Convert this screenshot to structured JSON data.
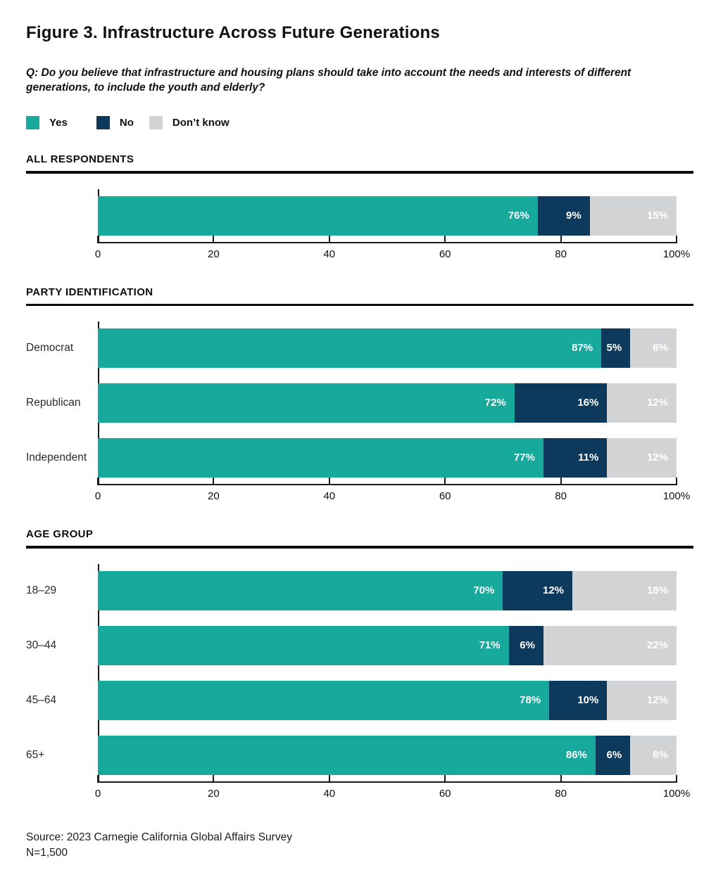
{
  "figure": {
    "title": "Figure 3. Infrastructure Across Future Generations",
    "question": "Q: Do you believe that infrastructure and housing plans should take into account the needs and interests of different generations, to include the youth and elderly?",
    "source": "Source: 2023 Carnegie California Global Affairs Survey",
    "sample_size": "N=1,500"
  },
  "colors": {
    "yes": "#17a99c",
    "no": "#0d3a5c",
    "dont_know": "#d2d3d4",
    "axis": "#1a1a1a",
    "value_text": "#ffffff"
  },
  "legend": {
    "items": [
      {
        "label": "Yes",
        "key": "yes"
      },
      {
        "label": "No",
        "key": "no"
      },
      {
        "label": "Don’t know",
        "key": "dont_know"
      }
    ]
  },
  "chart_data": [
    {
      "type": "bar",
      "orientation": "horizontal",
      "stacked": true,
      "section": "ALL RESPONDENTS",
      "categories": [
        ""
      ],
      "series": [
        {
          "name": "Yes",
          "values": [
            76
          ]
        },
        {
          "name": "No",
          "values": [
            9
          ]
        },
        {
          "name": "Don’t know",
          "values": [
            15
          ]
        }
      ],
      "xlim": [
        0,
        100
      ],
      "x_ticks": [
        0,
        20,
        40,
        60,
        80,
        100
      ],
      "x_tick_labels": [
        "0",
        "20",
        "40",
        "60",
        "80",
        "100%"
      ],
      "value_suffix": "%",
      "grid": false,
      "legend_position": "top"
    },
    {
      "type": "bar",
      "orientation": "horizontal",
      "stacked": true,
      "section": "PARTY IDENTIFICATION",
      "categories": [
        "Democrat",
        "Republican",
        "Independent"
      ],
      "series": [
        {
          "name": "Yes",
          "values": [
            87,
            72,
            77
          ]
        },
        {
          "name": "No",
          "values": [
            5,
            16,
            11
          ]
        },
        {
          "name": "Don’t know",
          "values": [
            8,
            12,
            12
          ]
        }
      ],
      "xlim": [
        0,
        100
      ],
      "x_ticks": [
        0,
        20,
        40,
        60,
        80,
        100
      ],
      "x_tick_labels": [
        "0",
        "20",
        "40",
        "60",
        "80",
        "100%"
      ],
      "value_suffix": "%",
      "grid": false,
      "legend_position": "top"
    },
    {
      "type": "bar",
      "orientation": "horizontal",
      "stacked": true,
      "section": "AGE GROUP",
      "categories": [
        "18–29",
        "30–44",
        "45–64",
        "65+"
      ],
      "series": [
        {
          "name": "Yes",
          "values": [
            70,
            71,
            78,
            86
          ]
        },
        {
          "name": "No",
          "values": [
            12,
            6,
            10,
            6
          ]
        },
        {
          "name": "Don’t know",
          "values": [
            18,
            22,
            12,
            8
          ]
        }
      ],
      "xlim": [
        0,
        100
      ],
      "x_ticks": [
        0,
        20,
        40,
        60,
        80,
        100
      ],
      "x_tick_labels": [
        "0",
        "20",
        "40",
        "60",
        "80",
        "100%"
      ],
      "value_suffix": "%",
      "grid": false,
      "legend_position": "top"
    }
  ]
}
